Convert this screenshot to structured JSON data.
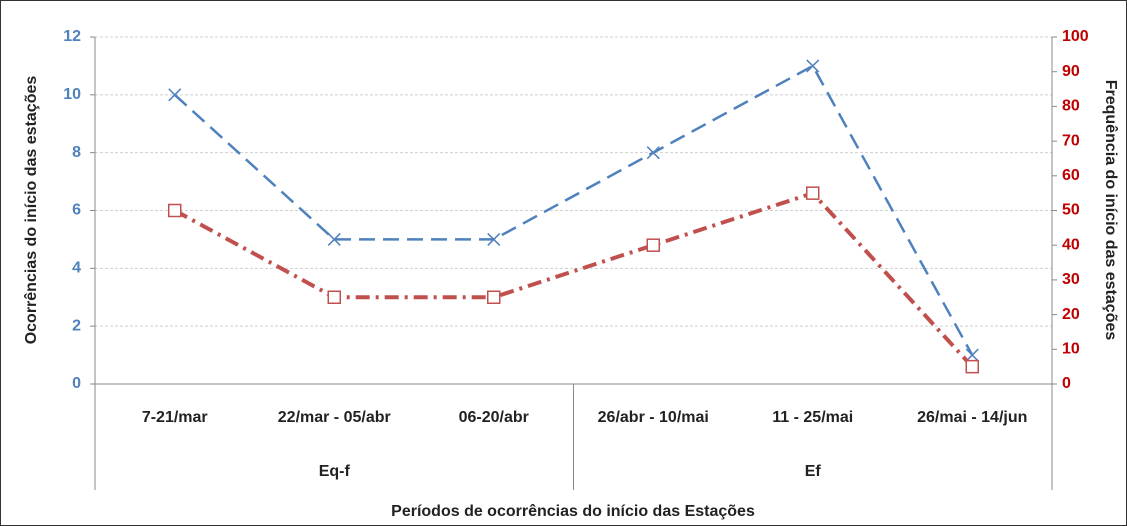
{
  "chart_data": {
    "type": "line",
    "y_label": "Ocorrências do início das estações",
    "y2_label": "Frequência do início das estações",
    "x_label": "Períodos de ocorrências do início das Estações",
    "categories": [
      "7-21/mar",
      "22/mar - 05/abr",
      "06-20/abr",
      "26/abr - 10/mai",
      "11 - 25/mai",
      "26/mai - 14/jun"
    ],
    "category_groups": [
      "Eq-f",
      "Eq-f",
      "Eq-f",
      "Ef",
      "Ef",
      "Ef"
    ],
    "series": [
      {
        "color": "#4f81bd",
        "marker": "x",
        "dash": "dashed",
        "values": [
          10,
          5,
          5,
          8,
          11,
          1
        ]
      },
      {
        "color": "#c0504d",
        "marker": "square",
        "dash": "dashdot",
        "axis": "y2",
        "values": [
          50,
          25,
          25,
          40,
          55,
          5
        ]
      }
    ],
    "ylim": [
      0,
      12
    ],
    "yticks": [
      0,
      2,
      4,
      6,
      8,
      10,
      12
    ],
    "y_tick_color": "#4f81bd",
    "y2lim": [
      0,
      100
    ],
    "y2ticks": [
      0,
      10,
      20,
      30,
      40,
      50,
      60,
      70,
      80,
      90,
      100
    ],
    "y2_tick_color": "#c00000",
    "grid": true
  }
}
